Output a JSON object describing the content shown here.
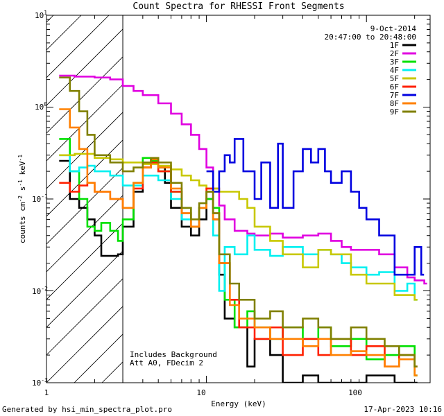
{
  "chart_data": {
    "type": "line",
    "title": "Count Spectra for RHESSI Front Segments",
    "xlabel": "Energy (keV)",
    "ylabel": "counts cm^-2 s^-1 keV^-1",
    "xscale": "log",
    "yscale": "log",
    "xlim": [
      1,
      250
    ],
    "ylim": [
      0.001,
      10
    ],
    "x_ticks": [
      {
        "value": 1,
        "label": "1"
      },
      {
        "value": 10,
        "label": "10"
      },
      {
        "value": 100,
        "label": "100"
      }
    ],
    "y_ticks": [
      {
        "value": 0.001,
        "base": "10",
        "exp": "-3"
      },
      {
        "value": 0.01,
        "base": "10",
        "exp": "-2"
      },
      {
        "value": 0.1,
        "base": "10",
        "exp": "-1"
      },
      {
        "value": 1,
        "base": "10",
        "exp": "0"
      },
      {
        "value": 10,
        "base": "10",
        "exp": "1"
      }
    ],
    "date": "9-Oct-2014",
    "time_range": "20:47:00 to 20:48:00",
    "hatched_region": {
      "x_from": 1,
      "x_to": 3
    },
    "annotations": [
      "Includes Background",
      "Att A0, FDecim 2"
    ],
    "series": [
      {
        "name": "1F",
        "color": "#000000",
        "points": [
          [
            1.2,
            0.26
          ],
          [
            1.4,
            0.1
          ],
          [
            1.6,
            0.08
          ],
          [
            1.8,
            0.06
          ],
          [
            2.0,
            0.04
          ],
          [
            2.2,
            0.024
          ],
          [
            2.8,
            0.025
          ],
          [
            3.0,
            0.05
          ],
          [
            3.5,
            0.12
          ],
          [
            4.0,
            0.22
          ],
          [
            4.5,
            0.25
          ],
          [
            5.0,
            0.22
          ],
          [
            5.5,
            0.15
          ],
          [
            6.0,
            0.08
          ],
          [
            7.0,
            0.05
          ],
          [
            8.0,
            0.04
          ],
          [
            9.0,
            0.06
          ],
          [
            10,
            0.1
          ],
          [
            11,
            0.06
          ],
          [
            12,
            0.015
          ],
          [
            13,
            0.005
          ],
          [
            15,
            0.004
          ],
          [
            18,
            0.0015
          ],
          [
            20,
            0.003
          ],
          [
            25,
            0.002
          ],
          [
            30,
            0.001
          ],
          [
            40,
            0.0012
          ],
          [
            50,
            0.001
          ],
          [
            70,
            0.001
          ],
          [
            100,
            0.0012
          ],
          [
            150,
            0.001
          ],
          [
            200,
            0.001
          ]
        ]
      },
      {
        "name": "2F",
        "color": "#e000e0",
        "points": [
          [
            1.2,
            2.2
          ],
          [
            1.5,
            2.15
          ],
          [
            2.0,
            2.1
          ],
          [
            2.5,
            2.0
          ],
          [
            3.0,
            1.7
          ],
          [
            3.5,
            1.5
          ],
          [
            4.0,
            1.35
          ],
          [
            5.0,
            1.1
          ],
          [
            6.0,
            0.85
          ],
          [
            7.0,
            0.65
          ],
          [
            8.0,
            0.5
          ],
          [
            9.0,
            0.35
          ],
          [
            10,
            0.22
          ],
          [
            11,
            0.13
          ],
          [
            12,
            0.085
          ],
          [
            13,
            0.06
          ],
          [
            15,
            0.045
          ],
          [
            18,
            0.042
          ],
          [
            20,
            0.04
          ],
          [
            25,
            0.042
          ],
          [
            30,
            0.038
          ],
          [
            40,
            0.04
          ],
          [
            50,
            0.042
          ],
          [
            60,
            0.035
          ],
          [
            70,
            0.03
          ],
          [
            80,
            0.028
          ],
          [
            100,
            0.028
          ],
          [
            120,
            0.025
          ],
          [
            150,
            0.018
          ],
          [
            180,
            0.014
          ],
          [
            200,
            0.013
          ],
          [
            230,
            0.012
          ]
        ]
      },
      {
        "name": "3F",
        "color": "#00e000",
        "points": [
          [
            1.2,
            0.45
          ],
          [
            1.4,
            0.2
          ],
          [
            1.6,
            0.1
          ],
          [
            1.8,
            0.05
          ],
          [
            2.0,
            0.045
          ],
          [
            2.2,
            0.055
          ],
          [
            2.5,
            0.045
          ],
          [
            2.8,
            0.035
          ],
          [
            3.0,
            0.06
          ],
          [
            3.5,
            0.15
          ],
          [
            4.0,
            0.28
          ],
          [
            4.5,
            0.26
          ],
          [
            5.0,
            0.2
          ],
          [
            6.0,
            0.12
          ],
          [
            7.0,
            0.08
          ],
          [
            8.0,
            0.05
          ],
          [
            9.0,
            0.08
          ],
          [
            10,
            0.1
          ],
          [
            11,
            0.08
          ],
          [
            12,
            0.02
          ],
          [
            13,
            0.008
          ],
          [
            15,
            0.004
          ],
          [
            18,
            0.006
          ],
          [
            20,
            0.004
          ],
          [
            25,
            0.003
          ],
          [
            30,
            0.004
          ],
          [
            40,
            0.003
          ],
          [
            50,
            0.004
          ],
          [
            60,
            0.0025
          ],
          [
            80,
            0.003
          ],
          [
            100,
            0.0018
          ],
          [
            130,
            0.002
          ],
          [
            160,
            0.0025
          ],
          [
            200,
            0.0012
          ]
        ]
      },
      {
        "name": "4F",
        "color": "#00f0f0",
        "points": [
          [
            1.2,
            0.3
          ],
          [
            1.4,
            0.2
          ],
          [
            1.6,
            0.22
          ],
          [
            1.8,
            0.23
          ],
          [
            2.0,
            0.2
          ],
          [
            2.5,
            0.18
          ],
          [
            3.0,
            0.14
          ],
          [
            4.0,
            0.18
          ],
          [
            5.0,
            0.16
          ],
          [
            6.0,
            0.1
          ],
          [
            7.0,
            0.06
          ],
          [
            8.0,
            0.05
          ],
          [
            9.0,
            0.08
          ],
          [
            10,
            0.12
          ],
          [
            11,
            0.04
          ],
          [
            12,
            0.01
          ],
          [
            13,
            0.03
          ],
          [
            15,
            0.025
          ],
          [
            18,
            0.04
          ],
          [
            20,
            0.028
          ],
          [
            25,
            0.024
          ],
          [
            30,
            0.03
          ],
          [
            40,
            0.025
          ],
          [
            50,
            0.028
          ],
          [
            60,
            0.025
          ],
          [
            70,
            0.02
          ],
          [
            80,
            0.018
          ],
          [
            100,
            0.015
          ],
          [
            120,
            0.016
          ],
          [
            150,
            0.01
          ],
          [
            180,
            0.012
          ],
          [
            200,
            0.008
          ]
        ]
      },
      {
        "name": "5F",
        "color": "#c8c800",
        "points": [
          [
            1.2,
            0.3
          ],
          [
            1.5,
            0.31
          ],
          [
            2.0,
            0.28
          ],
          [
            2.5,
            0.27
          ],
          [
            3.0,
            0.25
          ],
          [
            4.0,
            0.24
          ],
          [
            5.0,
            0.23
          ],
          [
            6.0,
            0.21
          ],
          [
            7.0,
            0.18
          ],
          [
            8.0,
            0.16
          ],
          [
            9.0,
            0.14
          ],
          [
            10,
            0.13
          ],
          [
            12,
            0.12
          ],
          [
            14,
            0.12
          ],
          [
            16,
            0.1
          ],
          [
            18,
            0.08
          ],
          [
            20,
            0.05
          ],
          [
            25,
            0.035
          ],
          [
            30,
            0.025
          ],
          [
            40,
            0.018
          ],
          [
            50,
            0.028
          ],
          [
            60,
            0.025
          ],
          [
            80,
            0.015
          ],
          [
            100,
            0.012
          ],
          [
            150,
            0.009
          ],
          [
            200,
            0.008
          ]
        ]
      },
      {
        "name": "6F",
        "color": "#ff2000",
        "points": [
          [
            1.2,
            0.15
          ],
          [
            1.4,
            0.12
          ],
          [
            1.6,
            0.14
          ],
          [
            1.8,
            0.15
          ],
          [
            2.0,
            0.12
          ],
          [
            2.5,
            0.1
          ],
          [
            3.0,
            0.08
          ],
          [
            3.5,
            0.13
          ],
          [
            4.0,
            0.22
          ],
          [
            4.5,
            0.25
          ],
          [
            5.0,
            0.2
          ],
          [
            6.0,
            0.12
          ],
          [
            7.0,
            0.07
          ],
          [
            8.0,
            0.05
          ],
          [
            9.0,
            0.08
          ],
          [
            10,
            0.13
          ],
          [
            11,
            0.07
          ],
          [
            12,
            0.02
          ],
          [
            14,
            0.008
          ],
          [
            16,
            0.004
          ],
          [
            20,
            0.003
          ],
          [
            25,
            0.004
          ],
          [
            30,
            0.002
          ],
          [
            40,
            0.003
          ],
          [
            50,
            0.002
          ],
          [
            60,
            0.003
          ],
          [
            80,
            0.002
          ],
          [
            100,
            0.0025
          ],
          [
            130,
            0.0015
          ],
          [
            160,
            0.002
          ],
          [
            200,
            0.0015
          ]
        ]
      },
      {
        "name": "7F",
        "color": "#0000e0",
        "points": [
          [
            10,
            0.2
          ],
          [
            11,
            0.12
          ],
          [
            12,
            0.2
          ],
          [
            13,
            0.3
          ],
          [
            14,
            0.25
          ],
          [
            15,
            0.45
          ],
          [
            17,
            0.2
          ],
          [
            20,
            0.1
          ],
          [
            22,
            0.25
          ],
          [
            25,
            0.08
          ],
          [
            28,
            0.4
          ],
          [
            30,
            0.08
          ],
          [
            35,
            0.2
          ],
          [
            40,
            0.35
          ],
          [
            45,
            0.25
          ],
          [
            50,
            0.35
          ],
          [
            55,
            0.2
          ],
          [
            60,
            0.15
          ],
          [
            70,
            0.2
          ],
          [
            80,
            0.12
          ],
          [
            90,
            0.08
          ],
          [
            100,
            0.06
          ],
          [
            120,
            0.04
          ],
          [
            150,
            0.015
          ],
          [
            180,
            0.015
          ],
          [
            200,
            0.03
          ],
          [
            220,
            0.015
          ]
        ]
      },
      {
        "name": "8F",
        "color": "#ff8000",
        "points": [
          [
            1.2,
            0.95
          ],
          [
            1.4,
            0.6
          ],
          [
            1.6,
            0.35
          ],
          [
            1.8,
            0.15
          ],
          [
            2.0,
            0.12
          ],
          [
            2.5,
            0.1
          ],
          [
            3.0,
            0.08
          ],
          [
            3.5,
            0.15
          ],
          [
            4.0,
            0.22
          ],
          [
            4.5,
            0.27
          ],
          [
            5.0,
            0.22
          ],
          [
            6.0,
            0.13
          ],
          [
            7.0,
            0.07
          ],
          [
            8.0,
            0.05
          ],
          [
            9.0,
            0.08
          ],
          [
            10,
            0.12
          ],
          [
            11,
            0.06
          ],
          [
            12,
            0.02
          ],
          [
            14,
            0.007
          ],
          [
            16,
            0.005
          ],
          [
            20,
            0.004
          ],
          [
            25,
            0.003
          ],
          [
            30,
            0.003
          ],
          [
            40,
            0.0025
          ],
          [
            50,
            0.003
          ],
          [
            60,
            0.002
          ],
          [
            80,
            0.0022
          ],
          [
            100,
            0.002
          ],
          [
            130,
            0.0015
          ],
          [
            160,
            0.0018
          ],
          [
            200,
            0.0012
          ]
        ]
      },
      {
        "name": "9F",
        "color": "#808000",
        "points": [
          [
            1.2,
            2.1
          ],
          [
            1.4,
            1.5
          ],
          [
            1.6,
            0.9
          ],
          [
            1.8,
            0.5
          ],
          [
            2.0,
            0.3
          ],
          [
            2.5,
            0.25
          ],
          [
            3.0,
            0.2
          ],
          [
            3.5,
            0.22
          ],
          [
            4.0,
            0.25
          ],
          [
            4.5,
            0.28
          ],
          [
            5.0,
            0.25
          ],
          [
            6.0,
            0.15
          ],
          [
            7.0,
            0.08
          ],
          [
            8.0,
            0.06
          ],
          [
            9.0,
            0.09
          ],
          [
            10,
            0.12
          ],
          [
            11,
            0.07
          ],
          [
            12,
            0.025
          ],
          [
            14,
            0.012
          ],
          [
            16,
            0.008
          ],
          [
            20,
            0.005
          ],
          [
            25,
            0.006
          ],
          [
            30,
            0.004
          ],
          [
            40,
            0.005
          ],
          [
            50,
            0.004
          ],
          [
            60,
            0.003
          ],
          [
            80,
            0.004
          ],
          [
            100,
            0.003
          ],
          [
            130,
            0.0025
          ],
          [
            160,
            0.002
          ],
          [
            200,
            0.0015
          ]
        ]
      }
    ]
  },
  "footer": {
    "generated_by": "Generated by hsi_min_spectra_plot.pro",
    "timestamp": "17-Apr-2023 10:16"
  }
}
